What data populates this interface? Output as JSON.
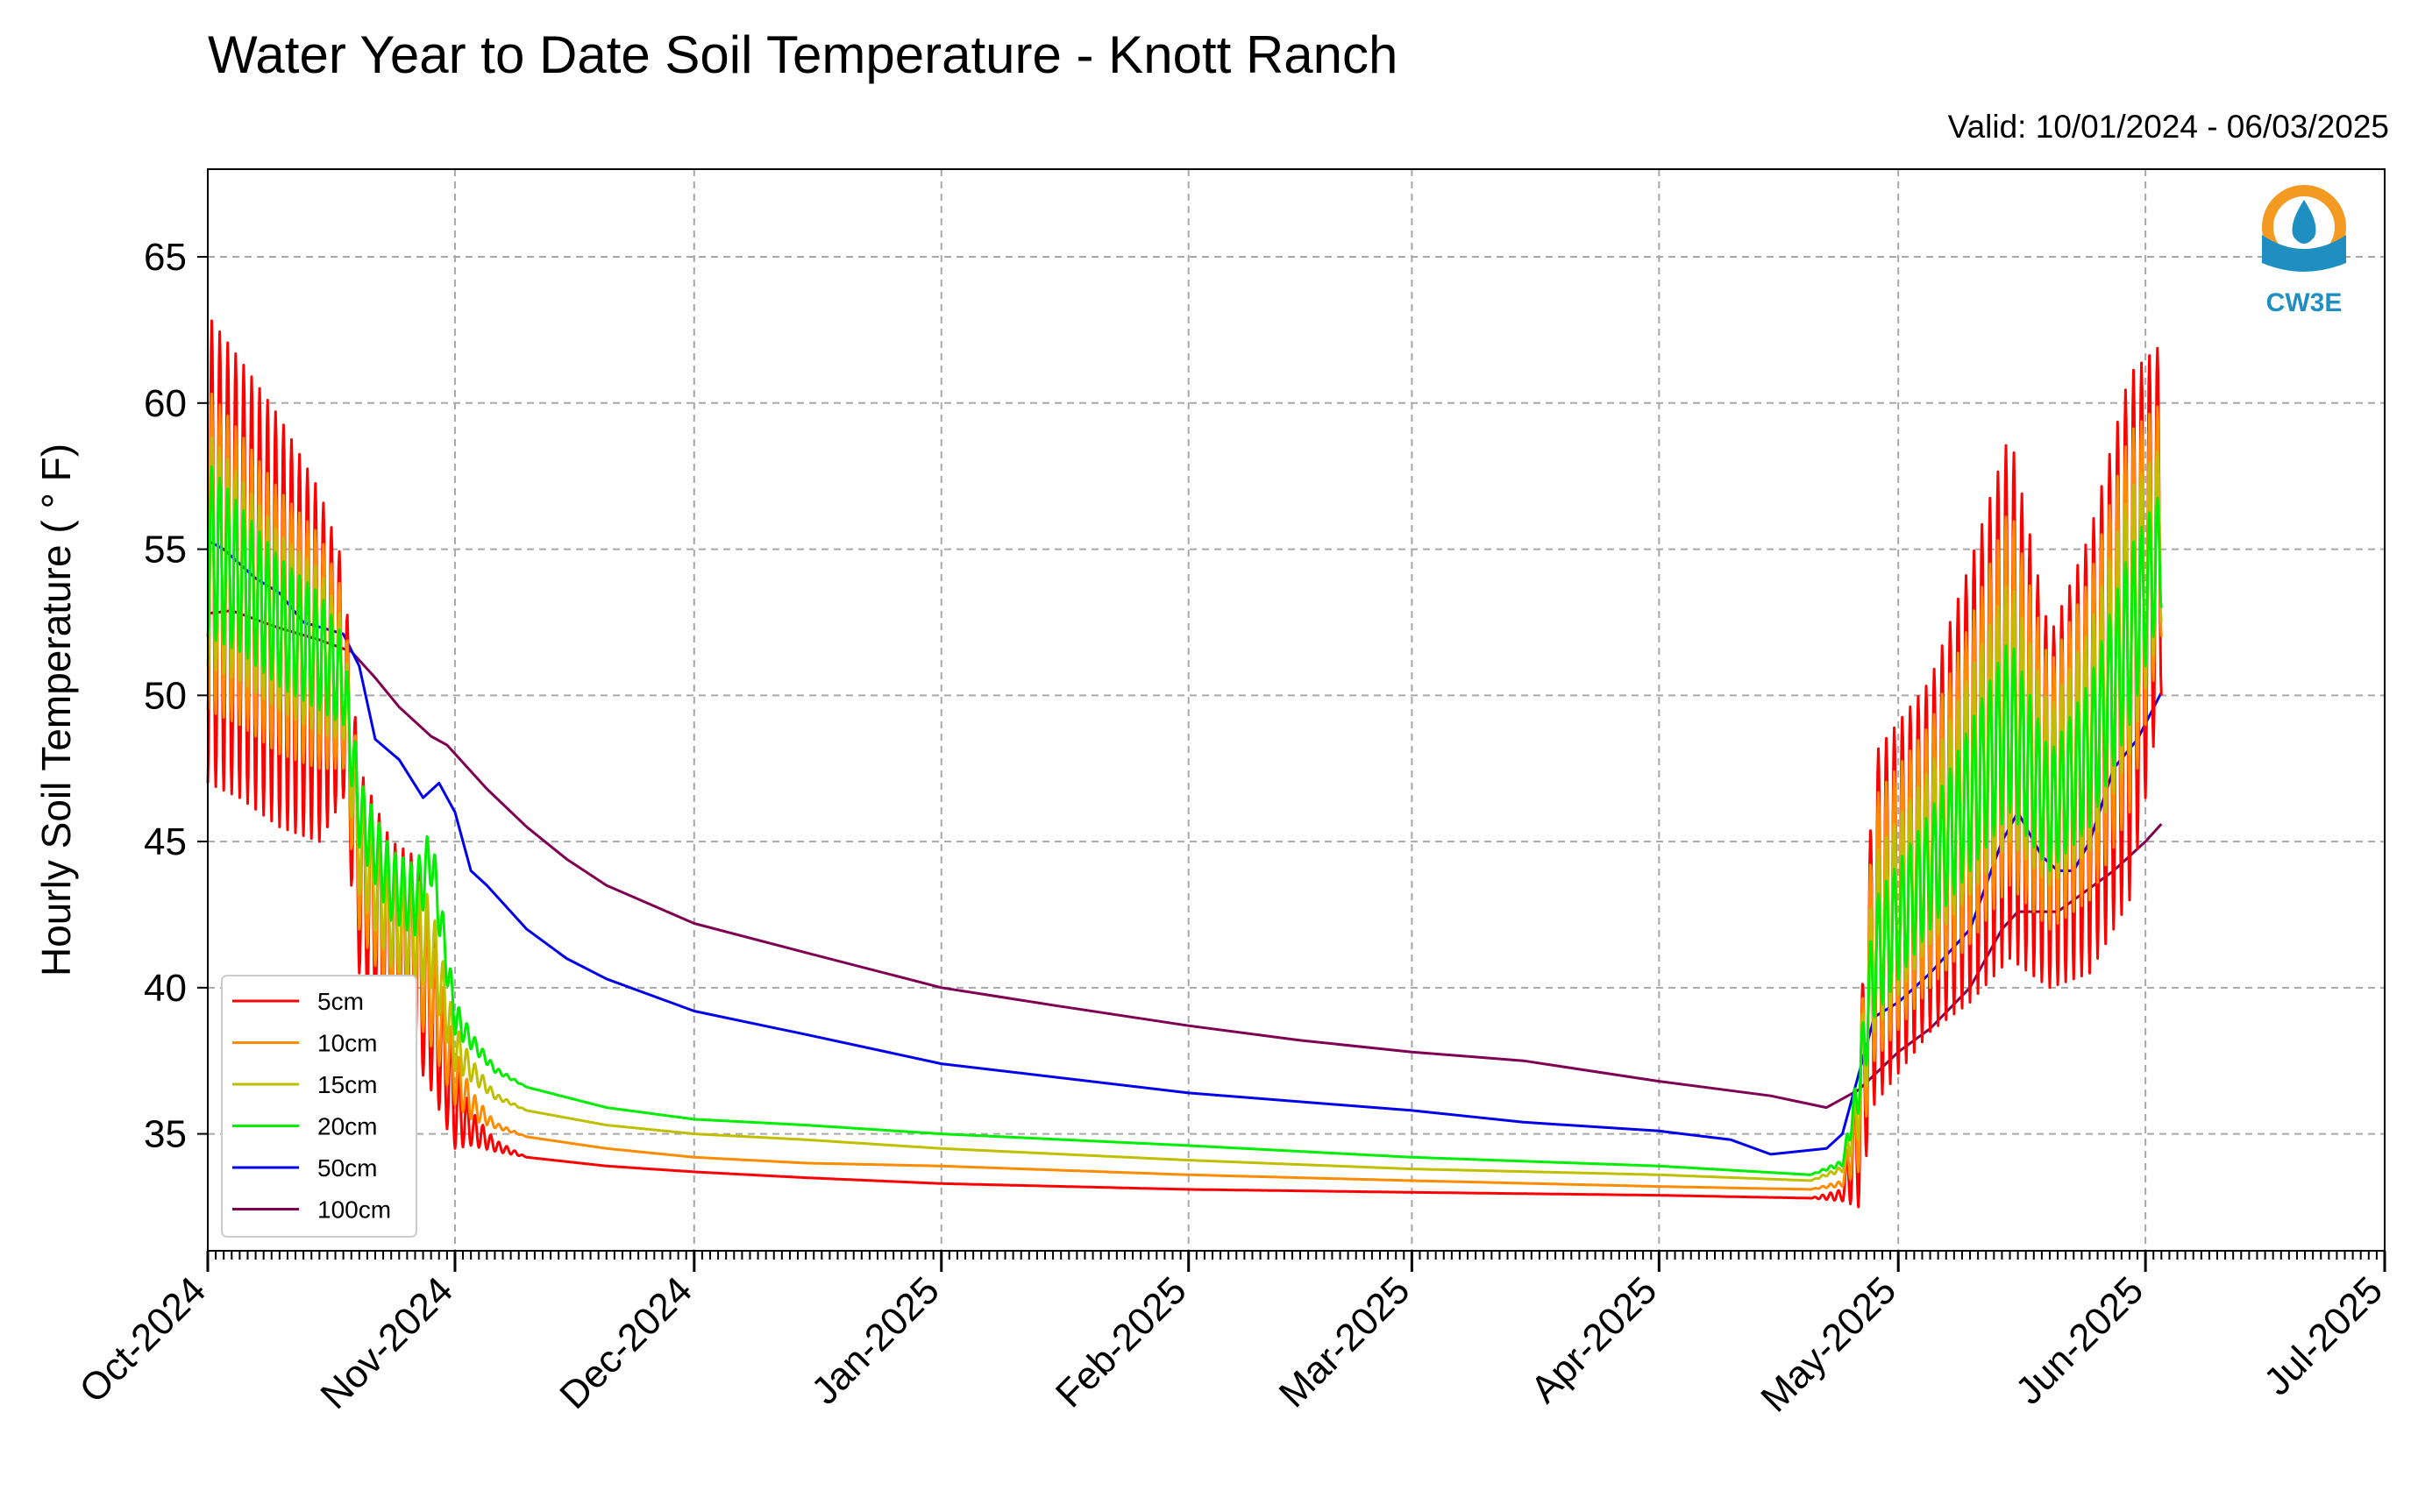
{
  "chart_data": {
    "type": "line",
    "title": "Water Year to Date Soil Temperature - Knott Ranch",
    "subtitle": "Valid: 10/01/2024 - 06/03/2025",
    "ylabel": "Hourly Soil Temperature ( ° F)",
    "xlabel": "",
    "ylim": [
      31,
      68
    ],
    "xlim": [
      "2024-10-01",
      "2025-07-01"
    ],
    "y_ticks": [
      35,
      40,
      45,
      50,
      55,
      60,
      65
    ],
    "x_ticks": [
      {
        "date": "2024-10-01",
        "label": "Oct-2024"
      },
      {
        "date": "2024-11-01",
        "label": "Nov-2024"
      },
      {
        "date": "2024-12-01",
        "label": "Dec-2024"
      },
      {
        "date": "2025-01-01",
        "label": "Jan-2025"
      },
      {
        "date": "2025-02-01",
        "label": "Feb-2025"
      },
      {
        "date": "2025-03-01",
        "label": "Mar-2025"
      },
      {
        "date": "2025-04-01",
        "label": "Apr-2025"
      },
      {
        "date": "2025-05-01",
        "label": "May-2025"
      },
      {
        "date": "2025-06-01",
        "label": "Jun-2025"
      },
      {
        "date": "2025-07-01",
        "label": "Jul-2025"
      }
    ],
    "grid": true,
    "legend_position": "lower-left",
    "logo_text": "CW3E",
    "series": [
      {
        "name": "5cm",
        "color": "#ff0000",
        "points": [
          [
            "2024-10-01",
            55.0,
            8.0
          ],
          [
            "2024-10-05",
            54.0,
            7.5
          ],
          [
            "2024-10-10",
            52.5,
            7.0
          ],
          [
            "2024-10-15",
            51.0,
            6.0
          ],
          [
            "2024-10-18",
            50.5,
            4.0
          ],
          [
            "2024-10-20",
            44.0,
            3.5
          ],
          [
            "2024-10-24",
            41.5,
            3.5
          ],
          [
            "2024-10-27",
            41.0,
            3.5
          ],
          [
            "2024-10-29",
            39.5,
            3.0
          ],
          [
            "2024-11-01",
            36.0,
            1.5
          ],
          [
            "2024-11-03",
            35.2,
            0.6
          ],
          [
            "2024-11-06",
            34.6,
            0.2
          ],
          [
            "2024-11-10",
            34.2,
            0
          ],
          [
            "2024-11-20",
            33.9,
            0
          ],
          [
            "2024-12-01",
            33.7,
            0
          ],
          [
            "2024-12-15",
            33.5,
            0
          ],
          [
            "2025-01-01",
            33.3,
            0
          ],
          [
            "2025-02-01",
            33.1,
            0
          ],
          [
            "2025-03-01",
            33.0,
            0
          ],
          [
            "2025-04-01",
            32.9,
            0
          ],
          [
            "2025-04-20",
            32.8,
            0
          ],
          [
            "2025-04-24",
            32.9,
            0.2
          ],
          [
            "2025-04-26",
            35.0,
            2.5
          ],
          [
            "2025-04-28",
            42.0,
            6.0
          ],
          [
            "2025-05-05",
            44.5,
            6.0
          ],
          [
            "2025-05-10",
            47.0,
            7.5
          ],
          [
            "2025-05-15",
            50.0,
            9.0
          ],
          [
            "2025-05-20",
            46.0,
            6.0
          ],
          [
            "2025-05-25",
            48.0,
            7.5
          ],
          [
            "2025-05-30",
            52.0,
            9.0
          ],
          [
            "2025-06-03",
            56.0,
            6.0
          ]
        ]
      },
      {
        "name": "10cm",
        "color": "#ff8c00",
        "points": [
          [
            "2024-10-01",
            55.0,
            5.5
          ],
          [
            "2024-10-05",
            54.0,
            5.0
          ],
          [
            "2024-10-10",
            52.5,
            4.5
          ],
          [
            "2024-10-15",
            51.5,
            4.0
          ],
          [
            "2024-10-18",
            50.5,
            3.0
          ],
          [
            "2024-10-20",
            44.5,
            2.5
          ],
          [
            "2024-10-24",
            42.0,
            2.5
          ],
          [
            "2024-10-27",
            41.5,
            2.5
          ],
          [
            "2024-10-29",
            40.0,
            2.0
          ],
          [
            "2024-11-01",
            37.0,
            1.0
          ],
          [
            "2024-11-03",
            36.0,
            0.5
          ],
          [
            "2024-11-06",
            35.3,
            0.1
          ],
          [
            "2024-11-10",
            34.9,
            0
          ],
          [
            "2024-11-20",
            34.5,
            0
          ],
          [
            "2024-12-01",
            34.2,
            0
          ],
          [
            "2024-12-15",
            34.0,
            0
          ],
          [
            "2025-01-01",
            33.9,
            0
          ],
          [
            "2025-02-01",
            33.6,
            0
          ],
          [
            "2025-03-01",
            33.4,
            0
          ],
          [
            "2025-04-01",
            33.2,
            0
          ],
          [
            "2025-04-20",
            33.1,
            0
          ],
          [
            "2025-04-24",
            33.3,
            0.1
          ],
          [
            "2025-04-26",
            35.5,
            1.8
          ],
          [
            "2025-04-28",
            42.0,
            4.5
          ],
          [
            "2025-05-05",
            44.5,
            4.5
          ],
          [
            "2025-05-10",
            47.0,
            5.5
          ],
          [
            "2025-05-15",
            50.0,
            6.5
          ],
          [
            "2025-05-20",
            46.5,
            4.5
          ],
          [
            "2025-05-25",
            48.5,
            5.5
          ],
          [
            "2025-05-30",
            52.5,
            6.5
          ],
          [
            "2025-06-03",
            56.0,
            4.0
          ]
        ]
      },
      {
        "name": "15cm",
        "color": "#bfbf00",
        "points": [
          [
            "2024-10-01",
            55.0,
            4.0
          ],
          [
            "2024-10-05",
            54.0,
            3.5
          ],
          [
            "2024-10-10",
            52.5,
            3.0
          ],
          [
            "2024-10-15",
            51.5,
            2.8
          ],
          [
            "2024-10-18",
            50.5,
            2.0
          ],
          [
            "2024-10-20",
            45.0,
            1.8
          ],
          [
            "2024-10-24",
            42.5,
            1.8
          ],
          [
            "2024-10-27",
            42.0,
            1.8
          ],
          [
            "2024-10-29",
            41.5,
            1.5
          ],
          [
            "2024-11-01",
            38.0,
            0.8
          ],
          [
            "2024-11-03",
            37.2,
            0.4
          ],
          [
            "2024-11-06",
            36.3,
            0.1
          ],
          [
            "2024-11-10",
            35.8,
            0
          ],
          [
            "2024-11-20",
            35.3,
            0
          ],
          [
            "2024-12-01",
            35.0,
            0
          ],
          [
            "2024-12-15",
            34.8,
            0
          ],
          [
            "2025-01-01",
            34.5,
            0
          ],
          [
            "2025-02-01",
            34.1,
            0
          ],
          [
            "2025-03-01",
            33.8,
            0
          ],
          [
            "2025-04-01",
            33.6,
            0
          ],
          [
            "2025-04-20",
            33.4,
            0
          ],
          [
            "2025-04-24",
            33.8,
            0.1
          ],
          [
            "2025-04-26",
            36.0,
            1.2
          ],
          [
            "2025-04-28",
            41.5,
            3.0
          ],
          [
            "2025-05-05",
            44.5,
            3.0
          ],
          [
            "2025-05-10",
            47.0,
            3.8
          ],
          [
            "2025-05-15",
            49.5,
            4.5
          ],
          [
            "2025-05-20",
            46.5,
            3.0
          ],
          [
            "2025-05-25",
            48.5,
            3.8
          ],
          [
            "2025-05-30",
            52.5,
            4.5
          ],
          [
            "2025-06-03",
            55.5,
            3.0
          ]
        ]
      },
      {
        "name": "20cm",
        "color": "#00ee00",
        "points": [
          [
            "2024-10-01",
            55.0,
            3.0
          ],
          [
            "2024-10-05",
            54.0,
            2.5
          ],
          [
            "2024-10-10",
            52.5,
            2.2
          ],
          [
            "2024-10-15",
            51.5,
            2.0
          ],
          [
            "2024-10-18",
            50.5,
            1.5
          ],
          [
            "2024-10-20",
            46.0,
            1.2
          ],
          [
            "2024-10-24",
            43.5,
            1.2
          ],
          [
            "2024-10-27",
            43.0,
            1.2
          ],
          [
            "2024-10-29",
            44.5,
            1.0
          ],
          [
            "2024-11-01",
            39.0,
            0.6
          ],
          [
            "2024-11-03",
            38.2,
            0.3
          ],
          [
            "2024-11-06",
            37.2,
            0.1
          ],
          [
            "2024-11-10",
            36.6,
            0
          ],
          [
            "2024-11-20",
            35.9,
            0
          ],
          [
            "2024-12-01",
            35.5,
            0
          ],
          [
            "2024-12-15",
            35.3,
            0
          ],
          [
            "2025-01-01",
            35.0,
            0
          ],
          [
            "2025-02-01",
            34.6,
            0
          ],
          [
            "2025-03-01",
            34.2,
            0
          ],
          [
            "2025-04-01",
            33.9,
            0
          ],
          [
            "2025-04-20",
            33.6,
            0
          ],
          [
            "2025-04-24",
            34.0,
            0.1
          ],
          [
            "2025-04-26",
            36.5,
            0.8
          ],
          [
            "2025-04-28",
            41.0,
            2.0
          ],
          [
            "2025-05-05",
            44.0,
            2.0
          ],
          [
            "2025-05-10",
            46.5,
            2.5
          ],
          [
            "2025-05-15",
            49.0,
            3.0
          ],
          [
            "2025-05-20",
            46.0,
            2.0
          ],
          [
            "2025-05-25",
            48.0,
            2.5
          ],
          [
            "2025-05-30",
            52.0,
            3.0
          ],
          [
            "2025-06-03",
            55.0,
            2.0
          ]
        ]
      },
      {
        "name": "50cm",
        "color": "#0000ee",
        "points": [
          [
            "2024-10-01",
            55.3,
            0
          ],
          [
            "2024-10-03",
            55.0,
            0
          ],
          [
            "2024-10-07",
            54.0,
            0
          ],
          [
            "2024-10-10",
            53.5,
            0
          ],
          [
            "2024-10-13",
            52.5,
            0
          ],
          [
            "2024-10-18",
            52.1,
            0
          ],
          [
            "2024-10-20",
            51.0,
            0
          ],
          [
            "2024-10-22",
            48.5,
            0
          ],
          [
            "2024-10-25",
            47.8,
            0
          ],
          [
            "2024-10-28",
            46.5,
            0
          ],
          [
            "2024-10-30",
            47.0,
            0
          ],
          [
            "2024-11-01",
            46.0,
            0
          ],
          [
            "2024-11-03",
            44.0,
            0
          ],
          [
            "2024-11-05",
            43.5,
            0
          ],
          [
            "2024-11-10",
            42.0,
            0
          ],
          [
            "2024-11-15",
            41.0,
            0
          ],
          [
            "2024-11-20",
            40.3,
            0
          ],
          [
            "2024-12-01",
            39.2,
            0
          ],
          [
            "2024-12-15",
            38.4,
            0
          ],
          [
            "2025-01-01",
            37.4,
            0
          ],
          [
            "2025-02-01",
            36.4,
            0
          ],
          [
            "2025-03-01",
            35.8,
            0
          ],
          [
            "2025-03-15",
            35.4,
            0
          ],
          [
            "2025-04-01",
            35.1,
            0
          ],
          [
            "2025-04-10",
            34.8,
            0
          ],
          [
            "2025-04-15",
            34.3,
            0
          ],
          [
            "2025-04-22",
            34.5,
            0
          ],
          [
            "2025-04-24",
            35.0,
            0
          ],
          [
            "2025-04-26",
            37.0,
            0
          ],
          [
            "2025-04-28",
            39.0,
            0
          ],
          [
            "2025-05-01",
            39.5,
            0
          ],
          [
            "2025-05-05",
            40.5,
            0
          ],
          [
            "2025-05-10",
            42.0,
            0
          ],
          [
            "2025-05-14",
            45.0,
            0
          ],
          [
            "2025-05-16",
            46.0,
            0
          ],
          [
            "2025-05-19",
            44.5,
            0
          ],
          [
            "2025-05-21",
            44.0,
            0
          ],
          [
            "2025-05-23",
            44.0,
            0
          ],
          [
            "2025-05-25",
            45.0,
            0
          ],
          [
            "2025-05-28",
            47.5,
            0
          ],
          [
            "2025-05-31",
            48.5,
            0
          ],
          [
            "2025-06-03",
            50.1,
            0
          ]
        ]
      },
      {
        "name": "100cm",
        "color": "#7f0052",
        "points": [
          [
            "2024-10-01",
            52.8,
            0
          ],
          [
            "2024-10-04",
            52.9,
            0
          ],
          [
            "2024-10-10",
            52.3,
            0
          ],
          [
            "2024-10-15",
            51.9,
            0
          ],
          [
            "2024-10-19",
            51.5,
            0
          ],
          [
            "2024-10-22",
            50.6,
            0
          ],
          [
            "2024-10-25",
            49.6,
            0
          ],
          [
            "2024-10-29",
            48.6,
            0
          ],
          [
            "2024-10-31",
            48.3,
            0
          ],
          [
            "2024-11-05",
            46.8,
            0
          ],
          [
            "2024-11-10",
            45.5,
            0
          ],
          [
            "2024-11-15",
            44.4,
            0
          ],
          [
            "2024-11-20",
            43.5,
            0
          ],
          [
            "2024-12-01",
            42.2,
            0
          ],
          [
            "2024-12-15",
            41.2,
            0
          ],
          [
            "2025-01-01",
            40.0,
            0
          ],
          [
            "2025-01-15",
            39.4,
            0
          ],
          [
            "2025-02-01",
            38.7,
            0
          ],
          [
            "2025-02-15",
            38.2,
            0
          ],
          [
            "2025-03-01",
            37.8,
            0
          ],
          [
            "2025-03-15",
            37.5,
            0
          ],
          [
            "2025-04-01",
            36.8,
            0
          ],
          [
            "2025-04-15",
            36.3,
            0
          ],
          [
            "2025-04-22",
            35.9,
            0
          ],
          [
            "2025-04-26",
            36.5,
            0
          ],
          [
            "2025-05-01",
            37.8,
            0
          ],
          [
            "2025-05-05",
            38.6,
            0
          ],
          [
            "2025-05-10",
            40.0,
            0
          ],
          [
            "2025-05-14",
            42.0,
            0
          ],
          [
            "2025-05-16",
            42.6,
            0
          ],
          [
            "2025-05-21",
            42.6,
            0
          ],
          [
            "2025-05-24",
            43.2,
            0
          ],
          [
            "2025-05-28",
            44.0,
            0
          ],
          [
            "2025-06-01",
            45.0,
            0
          ],
          [
            "2025-06-03",
            45.6,
            0
          ]
        ]
      }
    ]
  }
}
